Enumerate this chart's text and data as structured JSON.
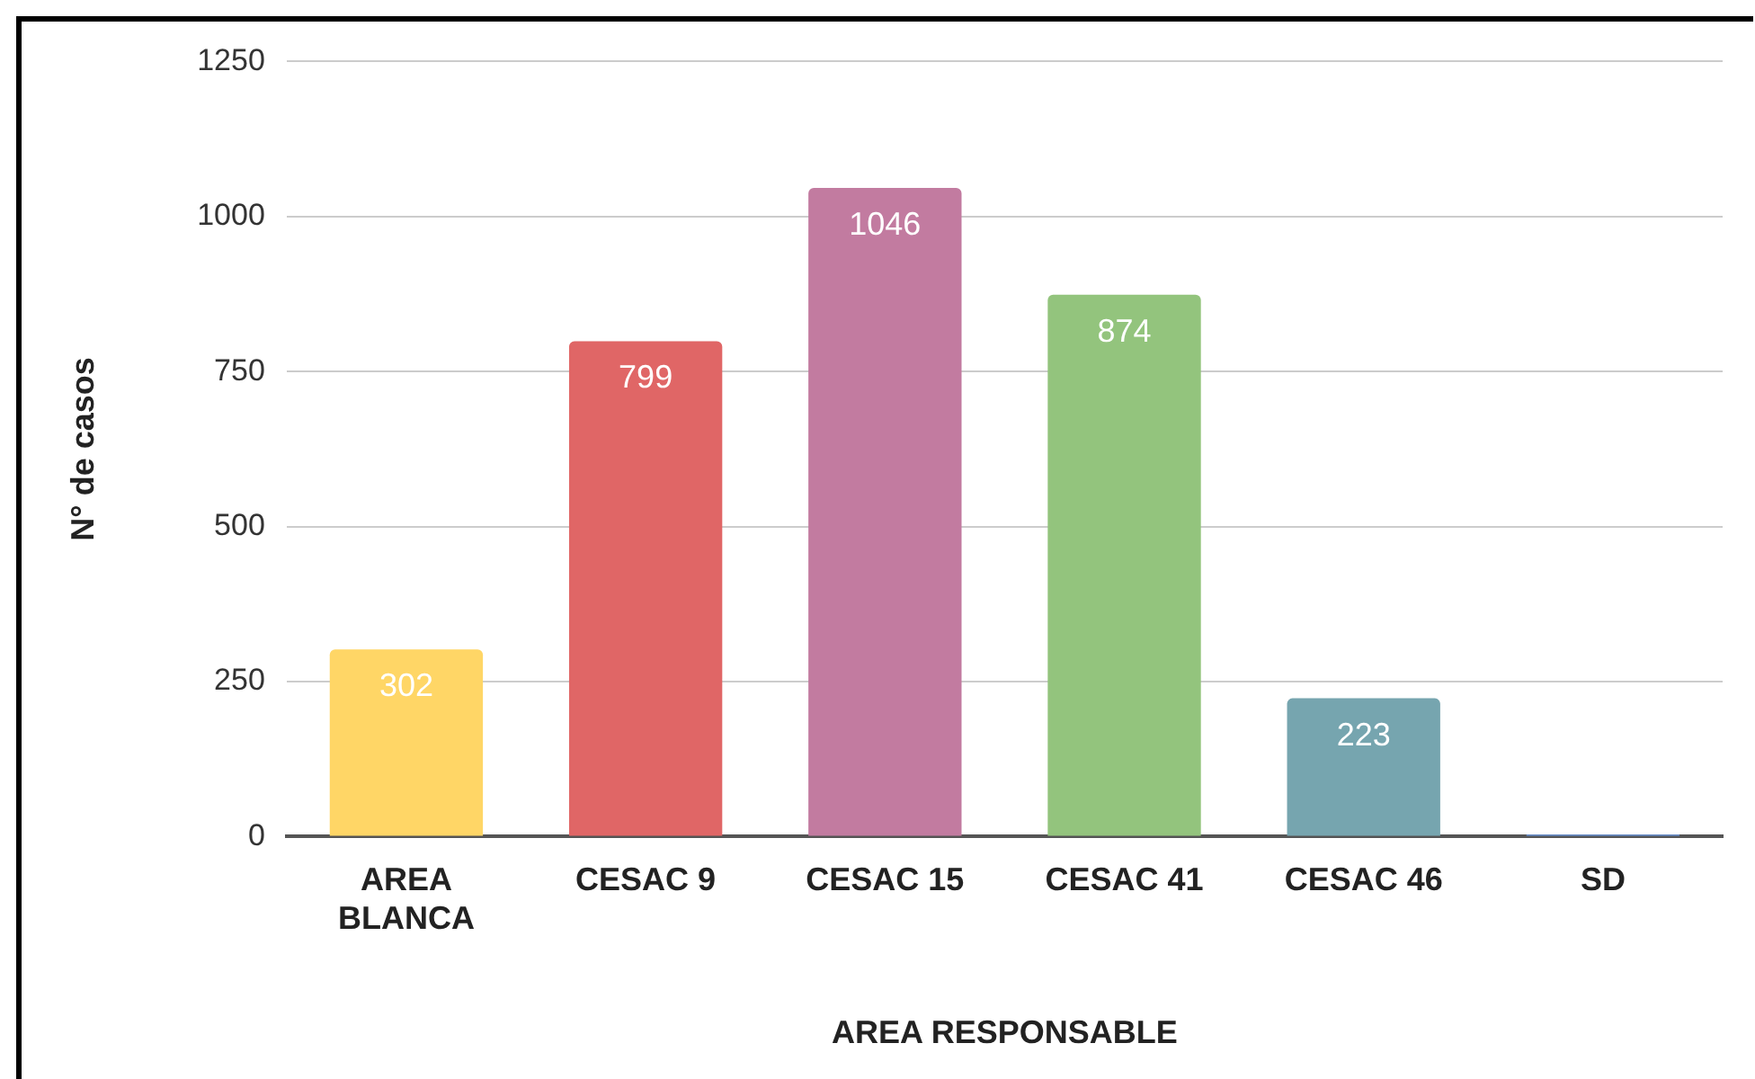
{
  "chart_data": {
    "type": "bar",
    "xlabel": "AREA RESPONSABLE",
    "ylabel": "N° de casos",
    "categories": [
      "AREA BLANCA",
      "CESAC 9",
      "CESAC 15",
      "CESAC 41",
      "CESAC 46",
      "SD"
    ],
    "values": [
      302,
      799,
      1046,
      874,
      223,
      3
    ],
    "colors": [
      "#ffd666",
      "#e06666",
      "#c27ba0",
      "#93c47d",
      "#76a5af",
      "#6d9eeb"
    ],
    "value_labels": [
      "302",
      "799",
      "1046",
      "874",
      "223",
      null
    ],
    "ylim": [
      0,
      1250
    ],
    "yticks": [
      0,
      250,
      500,
      750,
      1000,
      1250
    ],
    "grid": "y",
    "legend": false
  }
}
